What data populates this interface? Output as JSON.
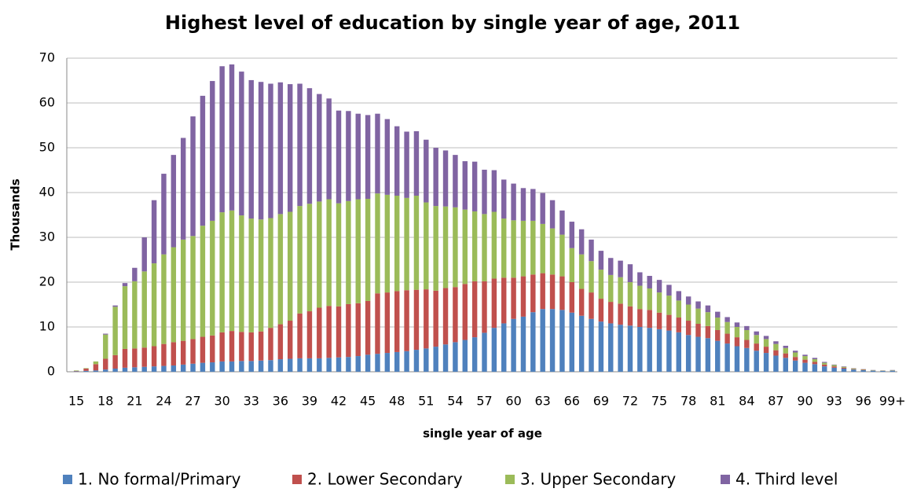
{
  "chart_data": {
    "type": "stacked_bar",
    "title": "Highest level of education by single year of age, 2011",
    "x_label": "single year of age",
    "y_label": "Thousands",
    "categories": [
      "15",
      null,
      null,
      "18",
      null,
      null,
      "21",
      null,
      null,
      "24",
      null,
      null,
      "27",
      null,
      null,
      "30",
      null,
      null,
      "33",
      null,
      null,
      "36",
      null,
      null,
      "39",
      null,
      null,
      "42",
      null,
      null,
      "45",
      null,
      null,
      "48",
      null,
      null,
      "51",
      null,
      null,
      "54",
      null,
      null,
      "57",
      null,
      null,
      "60",
      null,
      null,
      "63",
      null,
      null,
      "66",
      null,
      null,
      "69",
      null,
      null,
      "72",
      null,
      null,
      "75",
      null,
      null,
      "78",
      null,
      null,
      "81",
      null,
      null,
      "84",
      null,
      null,
      "87",
      null,
      null,
      "90",
      null,
      null,
      "93",
      null,
      null,
      "96",
      null,
      null,
      "99+"
    ],
    "series": [
      {
        "name": "1. No formal/Primary",
        "color": "#4f81bd",
        "values": [
          0.1,
          0.2,
          0.3,
          0.5,
          0.7,
          0.9,
          1.0,
          1.1,
          1.2,
          1.3,
          1.4,
          1.6,
          1.8,
          2.0,
          2.1,
          2.3,
          2.3,
          2.4,
          2.4,
          2.5,
          2.6,
          2.8,
          2.9,
          3.0,
          3.0,
          3.0,
          3.1,
          3.2,
          3.3,
          3.5,
          3.8,
          4.0,
          4.2,
          4.4,
          4.6,
          4.9,
          5.2,
          5.6,
          6.1,
          6.6,
          7.1,
          7.7,
          8.7,
          9.8,
          10.8,
          11.8,
          12.3,
          13.3,
          14.0,
          14.0,
          13.8,
          13.2,
          12.5,
          11.8,
          11.2,
          10.8,
          10.5,
          10.3,
          10.0,
          9.8,
          9.5,
          9.2,
          8.8,
          8.2,
          7.8,
          7.5,
          6.9,
          6.3,
          5.7,
          5.3,
          4.7,
          4.2,
          3.6,
          3.1,
          2.5,
          2.0,
          1.7,
          1.2,
          0.9,
          0.7,
          0.5,
          0.35,
          0.25,
          0.18,
          0.25
        ]
      },
      {
        "name": "2. Lower Secondary",
        "color": "#c0504d",
        "values": [
          0.1,
          0.5,
          1.4,
          2.4,
          3.0,
          4.2,
          4.2,
          4.3,
          4.5,
          4.9,
          5.2,
          5.3,
          5.5,
          5.8,
          6.0,
          6.5,
          6.8,
          6.5,
          6.4,
          6.5,
          7.2,
          7.8,
          8.5,
          10,
          10.5,
          11.3,
          11.6,
          11.4,
          11.8,
          11.8,
          12.0,
          13.5,
          13.5,
          13.6,
          13.6,
          13.4,
          13.2,
          12.5,
          12.6,
          12.3,
          12.5,
          12.5,
          11.5,
          11.0,
          10.2,
          9.2,
          9.0,
          8.4,
          8.0,
          7.7,
          7.5,
          6.8,
          6.0,
          5.9,
          5.1,
          4.8,
          4.7,
          4.3,
          4.0,
          4.0,
          3.7,
          3.5,
          3.3,
          3.2,
          2.9,
          2.7,
          2.4,
          2.2,
          2.0,
          1.8,
          1.6,
          1.4,
          1.2,
          1.0,
          0.8,
          0.7,
          0.5,
          0.4,
          0.3,
          0.2,
          0.1,
          0.1,
          0.05,
          0.04,
          0.05
        ]
      },
      {
        "name": "3. Upper Secondary",
        "color": "#9bbb59",
        "values": [
          0.1,
          0.1,
          0.6,
          5.4,
          10.8,
          14,
          15,
          17,
          18.5,
          20,
          21.2,
          22.6,
          23,
          24.8,
          25.6,
          26.8,
          26.9,
          26,
          25.4,
          25,
          24.5,
          24.6,
          24.3,
          24,
          24,
          23.7,
          23.8,
          23,
          23,
          23.2,
          22.8,
          22.3,
          21.8,
          21.3,
          20.6,
          21,
          19.4,
          18.9,
          18.2,
          17.8,
          16.6,
          15.6,
          15.0,
          14.9,
          13.2,
          12.8,
          12.4,
          12.0,
          11.0,
          10.3,
          9.3,
          7.6,
          7.7,
          7.0,
          6.5,
          6.0,
          5.9,
          5.4,
          5.2,
          4.8,
          4.5,
          4.3,
          3.8,
          3.6,
          3.4,
          3.1,
          2.8,
          2.6,
          2.3,
          2.2,
          1.9,
          1.7,
          1.4,
          1.2,
          1.0,
          0.8,
          0.6,
          0.4,
          0.3,
          0.2,
          0.15,
          0.1,
          0.07,
          0.05,
          0.07
        ]
      },
      {
        "name": "4. Third level",
        "color": "#8064a2",
        "values": [
          0,
          0,
          0,
          0.2,
          0.3,
          0.7,
          3.0,
          7.6,
          14.1,
          18,
          20.6,
          22.7,
          26.7,
          29.0,
          31.2,
          32.6,
          32.6,
          32.1,
          30.9,
          30.7,
          30,
          29.4,
          28.5,
          27.3,
          25.8,
          24,
          22.5,
          20.7,
          20.1,
          19.1,
          18.7,
          17.8,
          16.9,
          15.5,
          14.8,
          14.4,
          14,
          13,
          12.5,
          11.7,
          10.8,
          11.1,
          9.9,
          9.3,
          8.7,
          8.2,
          7.3,
          7.1,
          6.9,
          6.3,
          5.4,
          5.9,
          5.6,
          4.8,
          4.2,
          3.8,
          3.7,
          4.0,
          3.0,
          2.8,
          2.8,
          2.4,
          2.1,
          1.8,
          1.6,
          1.5,
          1.3,
          1.1,
          1.0,
          0.9,
          0.8,
          0.7,
          0.6,
          0.5,
          0.4,
          0.3,
          0.3,
          0.2,
          0.1,
          0.1,
          0.05,
          0.05,
          0.03,
          0.03,
          0.03
        ]
      }
    ],
    "ylim": [
      0,
      70
    ],
    "yticks": [
      0,
      10,
      20,
      30,
      40,
      50,
      60,
      70
    ],
    "grid": true,
    "legend": "bottom"
  }
}
